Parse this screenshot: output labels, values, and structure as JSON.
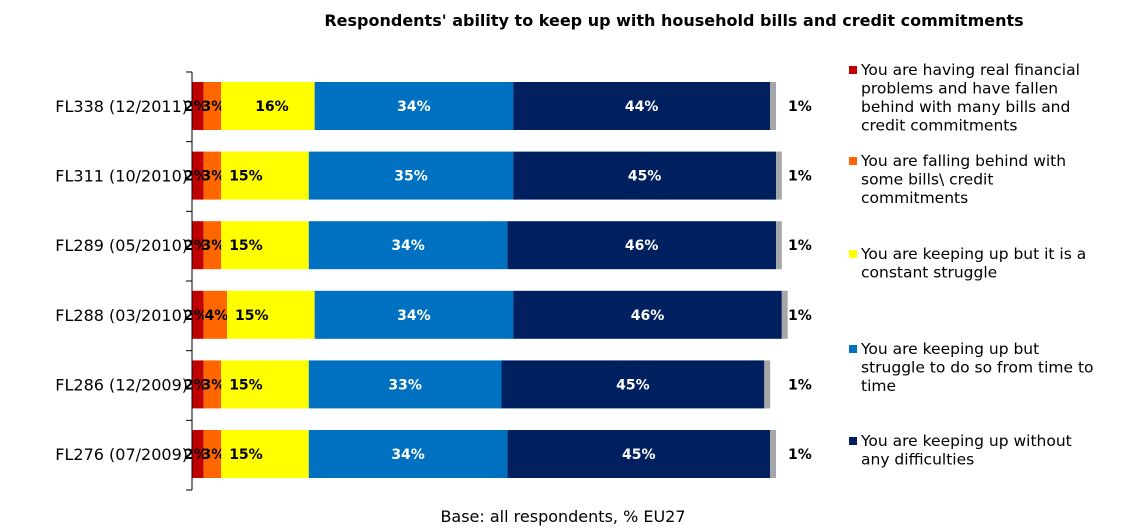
{
  "chart_data": {
    "type": "bar",
    "orientation": "horizontal",
    "stacked": true,
    "title": "Respondents' ability to keep up with household bills and credit commitments",
    "categories": [
      "FL338 (12/2011)",
      "FL311 (10/2010)",
      "FL289 (05/2010)",
      "FL288 (03/2010)",
      "FL286 (12/2009)",
      "FL276 (07/2009)"
    ],
    "series": [
      {
        "name": "You are having real financial problems and have fallen behind with many bills and credit commitments",
        "color": "#c00000",
        "values": [
          2,
          2,
          2,
          2,
          2,
          2
        ]
      },
      {
        "name": "You are falling behind with some bills\\ credit commitments",
        "color": "#ff6600",
        "values": [
          3,
          3,
          3,
          4,
          3,
          3
        ]
      },
      {
        "name": "You are keeping up but it is a constant struggle",
        "color": "#ffff00",
        "values": [
          16,
          15,
          15,
          15,
          15,
          15
        ]
      },
      {
        "name": "You are keeping up but struggle to do so from time to time",
        "color": "#0070c0",
        "values": [
          34,
          35,
          34,
          34,
          33,
          34
        ]
      },
      {
        "name": "You are keeping up without any difficulties",
        "color": "#002060",
        "values": [
          44,
          45,
          46,
          46,
          45,
          45
        ]
      },
      {
        "name": "",
        "color": "#a6a6a6",
        "values": [
          1,
          1,
          1,
          1,
          1,
          1
        ]
      }
    ],
    "value_suffix": "%",
    "xlim": [
      0,
      100
    ],
    "legend": "right",
    "grid": false
  },
  "footnote": "Base: all respondents, % EU27"
}
